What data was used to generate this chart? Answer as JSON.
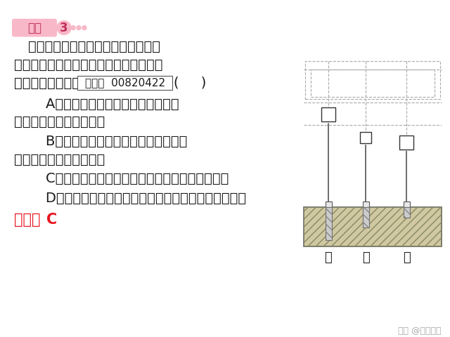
{
  "bg_color": "#ffffff",
  "title_badge_text": "变式",
  "title_badge_num": "3",
  "title_badge_color": "#f9b8c8",
  "title_badge_text_color": "#c0305a",
  "dots_color": "#f9b8c8",
  "question_line1": "如图所示是研究物体的重力势能与哪",
  "question_line2": "些因素有关的实验示意图，下列对于此图",
  "question_line3_pre": "的分析，错误的是",
  "guide_box_text": "导学号  00820422",
  "question_line3_post": "(     )",
  "optionA_line1": "    A．比较甲和乙，说明质量相等的物",
  "optionA_line2": "体被举得越高，势能越大",
  "optionB_line1": "    B．比较甲和丙，说明在同一高度处，",
  "optionB_line2": "质量越小的物体势能越小",
  "optionC": "    C．比较乙和丙，说明质量越大的物体，势能越大",
  "optionD": "    D．小木桩进入沙中越深，说明物体对木桩做的功越多",
  "answer_label": "答案：",
  "answer_value": "C",
  "answer_color": "#e8141e",
  "watermark": "头条 @冷杯热茶",
  "watermark_color": "#aaaaaa",
  "label_jia": "甲",
  "label_yi": "乙",
  "label_bing": "丙",
  "text_color": "#1a1a1a",
  "font_size_main": 14,
  "font_size_badge": 12,
  "font_size_label": 13
}
